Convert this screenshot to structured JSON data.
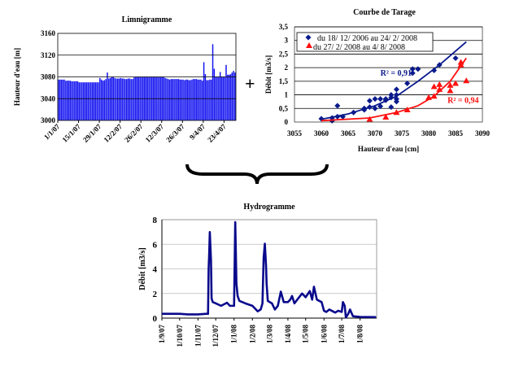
{
  "operator_plus": "+",
  "colors": {
    "bars": "#1414F0",
    "blue_series": "#0A1A8C",
    "red_series": "#FF1010",
    "hydro_line": "#0A0A8C"
  },
  "chart_data": [
    {
      "type": "bar",
      "title": "Limnigramme",
      "ylabel": "Hauteur d'eau [m]",
      "xlabel": "",
      "ylim": [
        3000,
        3160
      ],
      "yticks": [
        "3000",
        "3040",
        "3080",
        "3120",
        "3160"
      ],
      "grid": "horizontal",
      "start_date": "1/1/07",
      "xtick_labels": [
        "1/1/07",
        "15/1/07",
        "29/1/07",
        "12/2/07",
        "26/2/07",
        "12/3/07",
        "26/3/07",
        "9/4/07",
        "23/4/07"
      ],
      "values": [
        3075,
        3075,
        3075,
        3075,
        3075,
        3073,
        3073,
        3073,
        3073,
        3072,
        3072,
        3072,
        3072,
        3072,
        3070,
        3070,
        3070,
        3070,
        3070,
        3070,
        3070,
        3070,
        3070,
        3070,
        3070,
        3070,
        3070,
        3070,
        3078,
        3075,
        3073,
        3074,
        3076,
        3088,
        3077,
        3078,
        3080,
        3080,
        3078,
        3077,
        3077,
        3077,
        3078,
        3077,
        3077,
        3076,
        3076,
        3077,
        3077,
        3076,
        3076,
        3079,
        3080,
        3080,
        3080,
        3080,
        3080,
        3080,
        3080,
        3080,
        3080,
        3080,
        3080,
        3080,
        3080,
        3080,
        3080,
        3080,
        3080,
        3080,
        3080,
        3080,
        3078,
        3077,
        3076,
        3075,
        3076,
        3076,
        3076,
        3076,
        3076,
        3076,
        3075,
        3075,
        3075,
        3074,
        3075,
        3075,
        3074,
        3074,
        3075,
        3076,
        3076,
        3076,
        3075,
        3075,
        3075,
        3073,
        3107,
        3085,
        3074,
        3074,
        3075,
        3075,
        3140,
        3095,
        3080,
        3080,
        3080,
        3089,
        3080,
        3080,
        3080,
        3102,
        3084,
        3084,
        3085,
        3088,
        3091,
        3088
      ]
    },
    {
      "type": "scatter",
      "title": "Courbe de Tarage",
      "xlabel": "Hauteur d'eau [cm]",
      "ylabel": "Débit [m3/s]",
      "xlim": [
        3055,
        3090
      ],
      "ylim": [
        0,
        3.5
      ],
      "xticks": [
        "3055",
        "3060",
        "3065",
        "3070",
        "3075",
        "3080",
        "3085",
        "3090"
      ],
      "yticks": [
        "0",
        "0,5",
        "1",
        "1,5",
        "2",
        "2,5",
        "3",
        "3,5"
      ],
      "grid": "horizontal",
      "legend_position": "top-left",
      "series": [
        {
          "name": "du 18/ 12/ 2006 au 24/ 2/ 2008",
          "marker": "diamond",
          "points": [
            [
              3060,
              0.12
            ],
            [
              3062,
              0.15
            ],
            [
              3062,
              0.05
            ],
            [
              3063,
              0.2
            ],
            [
              3063,
              0.6
            ],
            [
              3064,
              0.2
            ],
            [
              3066,
              0.35
            ],
            [
              3068,
              0.45
            ],
            [
              3068,
              0.5
            ],
            [
              3069,
              0.55
            ],
            [
              3069,
              0.78
            ],
            [
              3070,
              0.5
            ],
            [
              3070,
              0.85
            ],
            [
              3071,
              0.58
            ],
            [
              3071,
              0.85
            ],
            [
              3072,
              0.8
            ],
            [
              3072,
              0.85
            ],
            [
              3073,
              0.55
            ],
            [
              3073,
              0.9
            ],
            [
              3073,
              1.0
            ],
            [
              3074,
              1.2
            ],
            [
              3074,
              0.75
            ],
            [
              3074,
              0.85
            ],
            [
              3074,
              1.0
            ],
            [
              3076,
              1.42
            ],
            [
              3077,
              1.8
            ],
            [
              3077,
              1.95
            ],
            [
              3078,
              1.95
            ],
            [
              3081,
              1.9
            ],
            [
              3082,
              2.1
            ],
            [
              3085,
              2.35
            ]
          ],
          "trend": [
            [
              3060,
              0.1
            ],
            [
              3065,
              0.3
            ],
            [
              3070,
              0.6
            ],
            [
              3074,
              0.95
            ],
            [
              3078,
              1.5
            ],
            [
              3082,
              2.1
            ],
            [
              3087,
              2.95
            ]
          ],
          "r2_label": "R² = 0,91",
          "r2_at": [
            3071,
            1.7
          ]
        },
        {
          "name": "du 27/ 2/ 2008 au 4/ 8/ 2008",
          "marker": "triangle",
          "points": [
            [
              3069,
              0.1
            ],
            [
              3072,
              0.18
            ],
            [
              3074,
              0.35
            ],
            [
              3076,
              0.45
            ],
            [
              3080,
              0.9
            ],
            [
              3081,
              0.95
            ],
            [
              3081,
              1.3
            ],
            [
              3082,
              1.2
            ],
            [
              3082,
              1.38
            ],
            [
              3084,
              1.15
            ],
            [
              3084,
              1.35
            ],
            [
              3085,
              1.42
            ],
            [
              3086,
              2.1
            ],
            [
              3086,
              2.2
            ],
            [
              3087,
              1.52
            ]
          ],
          "trend": [
            [
              3060,
              0.05
            ],
            [
              3069,
              0.15
            ],
            [
              3074,
              0.35
            ],
            [
              3078,
              0.6
            ],
            [
              3081,
              0.95
            ],
            [
              3084,
              1.5
            ],
            [
              3087,
              2.35
            ]
          ],
          "r2_label": "R² = 0,94",
          "r2_at": [
            3083.5,
            0.7
          ]
        }
      ]
    },
    {
      "type": "line",
      "title": "Hydrogramme",
      "ylabel": "Débit [m3/s]",
      "xlabel": "",
      "ylim": [
        0,
        8
      ],
      "yticks": [
        "0",
        "2",
        "4",
        "6",
        "8"
      ],
      "xlim": [
        "2007-09-01",
        "2008-08-29"
      ],
      "xtick_dates": [
        "2007-09-01",
        "2007-10-01",
        "2007-11-01",
        "2007-12-01",
        "2008-01-01",
        "2008-02-01",
        "2008-03-01",
        "2008-04-01",
        "2008-05-01",
        "2008-06-01",
        "2008-07-01",
        "2008-08-01"
      ],
      "xtick_labels": [
        "1/9/07",
        "1/10/07",
        "1/11/07",
        "1/12/07",
        "1/1/08",
        "1/2/08",
        "1/3/08",
        "1/4/08",
        "1/5/08",
        "1/6/08",
        "1/7/08",
        "1/8/08"
      ],
      "grid": "horizontal",
      "points": [
        [
          "2007-09-01",
          0.35
        ],
        [
          "2007-10-01",
          0.35
        ],
        [
          "2007-10-15",
          0.3
        ],
        [
          "2007-11-01",
          0.3
        ],
        [
          "2007-11-15",
          0.35
        ],
        [
          "2007-11-18",
          0.35
        ],
        [
          "2007-11-19",
          4
        ],
        [
          "2007-11-20",
          5.3
        ],
        [
          "2007-11-21",
          7.0
        ],
        [
          "2007-11-23",
          4.7
        ],
        [
          "2007-11-24",
          1.6
        ],
        [
          "2007-11-26",
          1.3
        ],
        [
          "2007-12-01",
          1.2
        ],
        [
          "2007-12-10",
          1.0
        ],
        [
          "2007-12-20",
          1.25
        ],
        [
          "2007-12-25",
          1.0
        ],
        [
          "2008-01-01",
          1.0
        ],
        [
          "2008-01-02",
          4.4
        ],
        [
          "2008-01-03",
          7.8
        ],
        [
          "2008-01-05",
          2.8
        ],
        [
          "2008-01-07",
          1.8
        ],
        [
          "2008-01-10",
          1.4
        ],
        [
          "2008-01-20",
          1.2
        ],
        [
          "2008-02-01",
          1.0
        ],
        [
          "2008-02-10",
          0.55
        ],
        [
          "2008-02-15",
          0.7
        ],
        [
          "2008-02-18",
          1.2
        ],
        [
          "2008-02-20",
          4.9
        ],
        [
          "2008-02-22",
          6.05
        ],
        [
          "2008-02-24",
          4.3
        ],
        [
          "2008-02-25",
          2.8
        ],
        [
          "2008-02-27",
          1.4
        ],
        [
          "2008-03-05",
          1.2
        ],
        [
          "2008-03-10",
          0.7
        ],
        [
          "2008-03-15",
          1.0
        ],
        [
          "2008-03-20",
          2.15
        ],
        [
          "2008-03-25",
          1.3
        ],
        [
          "2008-04-01",
          1.3
        ],
        [
          "2008-04-05",
          1.5
        ],
        [
          "2008-04-08",
          1.8
        ],
        [
          "2008-04-12",
          1.2
        ],
        [
          "2008-04-20",
          1.7
        ],
        [
          "2008-04-25",
          2.0
        ],
        [
          "2008-05-01",
          1.7
        ],
        [
          "2008-05-08",
          2.2
        ],
        [
          "2008-05-12",
          1.5
        ],
        [
          "2008-05-15",
          2.55
        ],
        [
          "2008-05-20",
          1.5
        ],
        [
          "2008-05-28",
          1.3
        ],
        [
          "2008-06-01",
          0.6
        ],
        [
          "2008-06-05",
          0.5
        ],
        [
          "2008-06-10",
          0.7
        ],
        [
          "2008-06-20",
          0.45
        ],
        [
          "2008-06-25",
          0.6
        ],
        [
          "2008-07-01",
          0.5
        ],
        [
          "2008-07-03",
          1.3
        ],
        [
          "2008-07-06",
          1.0
        ],
        [
          "2008-07-08",
          0.05
        ],
        [
          "2008-07-12",
          0.35
        ],
        [
          "2008-07-15",
          0.7
        ],
        [
          "2008-07-20",
          0.15
        ],
        [
          "2008-08-01",
          0.1
        ],
        [
          "2008-08-28",
          0.08
        ]
      ]
    }
  ]
}
